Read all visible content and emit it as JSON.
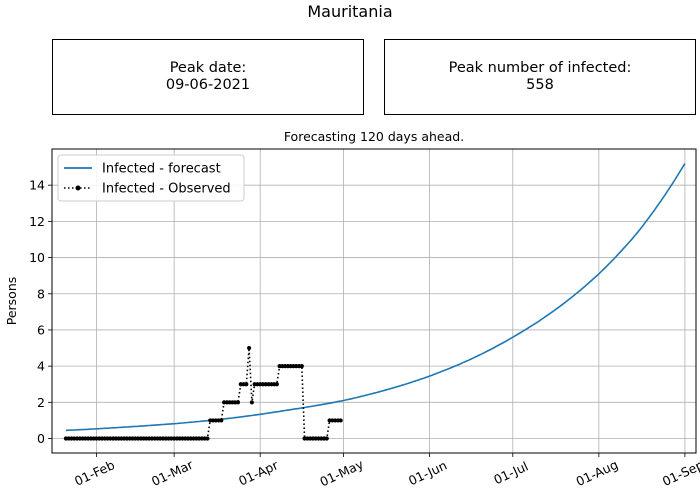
{
  "page_title": "Mauritania",
  "info_boxes": {
    "peak_date_label": "Peak date:",
    "peak_date_value": "09-06-2021",
    "peak_infected_label": "Peak number of infected:",
    "peak_infected_value": "558"
  },
  "chart_data": {
    "type": "line",
    "title": "Forecasting 120 days ahead.",
    "xlabel": "",
    "ylabel": "Persons",
    "x_axis": "date",
    "xlim": [
      "2021-01-16",
      "2021-09-05"
    ],
    "ylim": [
      -0.8,
      16.0
    ],
    "x_ticks": [
      {
        "date": "2021-02-01",
        "label": "01-Feb"
      },
      {
        "date": "2021-03-01",
        "label": "01-Mar"
      },
      {
        "date": "2021-04-01",
        "label": "01-Apr"
      },
      {
        "date": "2021-05-01",
        "label": "01-May"
      },
      {
        "date": "2021-06-01",
        "label": "01-Jun"
      },
      {
        "date": "2021-07-01",
        "label": "01-Jul"
      },
      {
        "date": "2021-08-01",
        "label": "01-Aug"
      },
      {
        "date": "2021-09-01",
        "label": "01-Sep"
      }
    ],
    "y_ticks": [
      0,
      2,
      4,
      6,
      8,
      10,
      12,
      14
    ],
    "grid": true,
    "legend_position": "upper-left",
    "series": [
      {
        "name": "Infected - forecast",
        "style": "solid",
        "color": "#1f77b4",
        "x": [
          "2021-01-21",
          "2021-02-10",
          "2021-03-01",
          "2021-03-20",
          "2021-04-10",
          "2021-05-01",
          "2021-06-01",
          "2021-07-01",
          "2021-08-01",
          "2021-08-15",
          "2021-09-01"
        ],
        "y": [
          0.45,
          0.62,
          0.82,
          1.1,
          1.55,
          2.1,
          3.45,
          5.6,
          9.1,
          11.4,
          15.2
        ]
      },
      {
        "name": "Infected - Observed",
        "style": "dotted-markers",
        "color": "#000000",
        "start_date": "2021-01-21",
        "values": [
          0,
          0,
          0,
          0,
          0,
          0,
          0,
          0,
          0,
          0,
          0,
          0,
          0,
          0,
          0,
          0,
          0,
          0,
          0,
          0,
          0,
          0,
          0,
          0,
          0,
          0,
          0,
          0,
          0,
          0,
          0,
          0,
          0,
          0,
          0,
          0,
          0,
          0,
          0,
          0,
          0,
          0,
          0,
          0,
          0,
          0,
          0,
          0,
          0,
          0,
          0,
          0,
          1,
          1,
          1,
          1,
          1,
          2,
          2,
          2,
          2,
          2,
          2,
          3,
          3,
          3,
          5,
          2,
          3,
          3,
          3,
          3,
          3,
          3,
          3,
          3,
          3,
          4,
          4,
          4,
          4,
          4,
          4,
          4,
          4,
          4,
          0,
          0,
          0,
          0,
          0,
          0,
          0,
          0,
          0,
          1,
          1,
          1,
          1,
          1
        ]
      }
    ]
  }
}
